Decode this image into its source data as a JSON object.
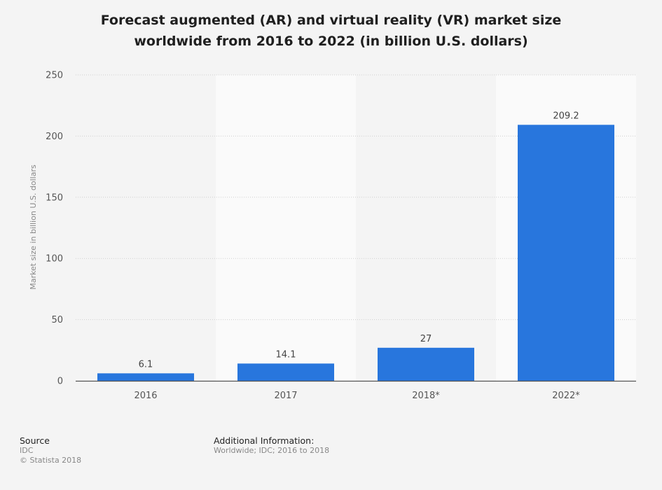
{
  "chart_data": {
    "type": "bar",
    "title_lines": [
      "Forecast augmented (AR) and virtual reality (VR) market size",
      "worldwide from 2016 to 2022 (in billion U.S. dollars)"
    ],
    "categories": [
      "2016",
      "2017",
      "2018*",
      "2022*"
    ],
    "values": [
      6.1,
      14.1,
      27,
      209.2
    ],
    "value_labels": [
      "6.1",
      "14.1",
      "27",
      "209.2"
    ],
    "xlabel": "",
    "ylabel": "Market size in billion U.S. dollars",
    "ylim": [
      0,
      250
    ],
    "yticks": [
      0,
      50,
      100,
      150,
      200,
      250
    ],
    "grid": true,
    "bar_color": "#2876dd"
  },
  "footer": {
    "source_heading": "Source",
    "source_lines": [
      "IDC",
      "© Statista 2018"
    ],
    "info_heading": "Additional Information:",
    "info_text": "Worldwide; IDC; 2016 to 2018"
  }
}
